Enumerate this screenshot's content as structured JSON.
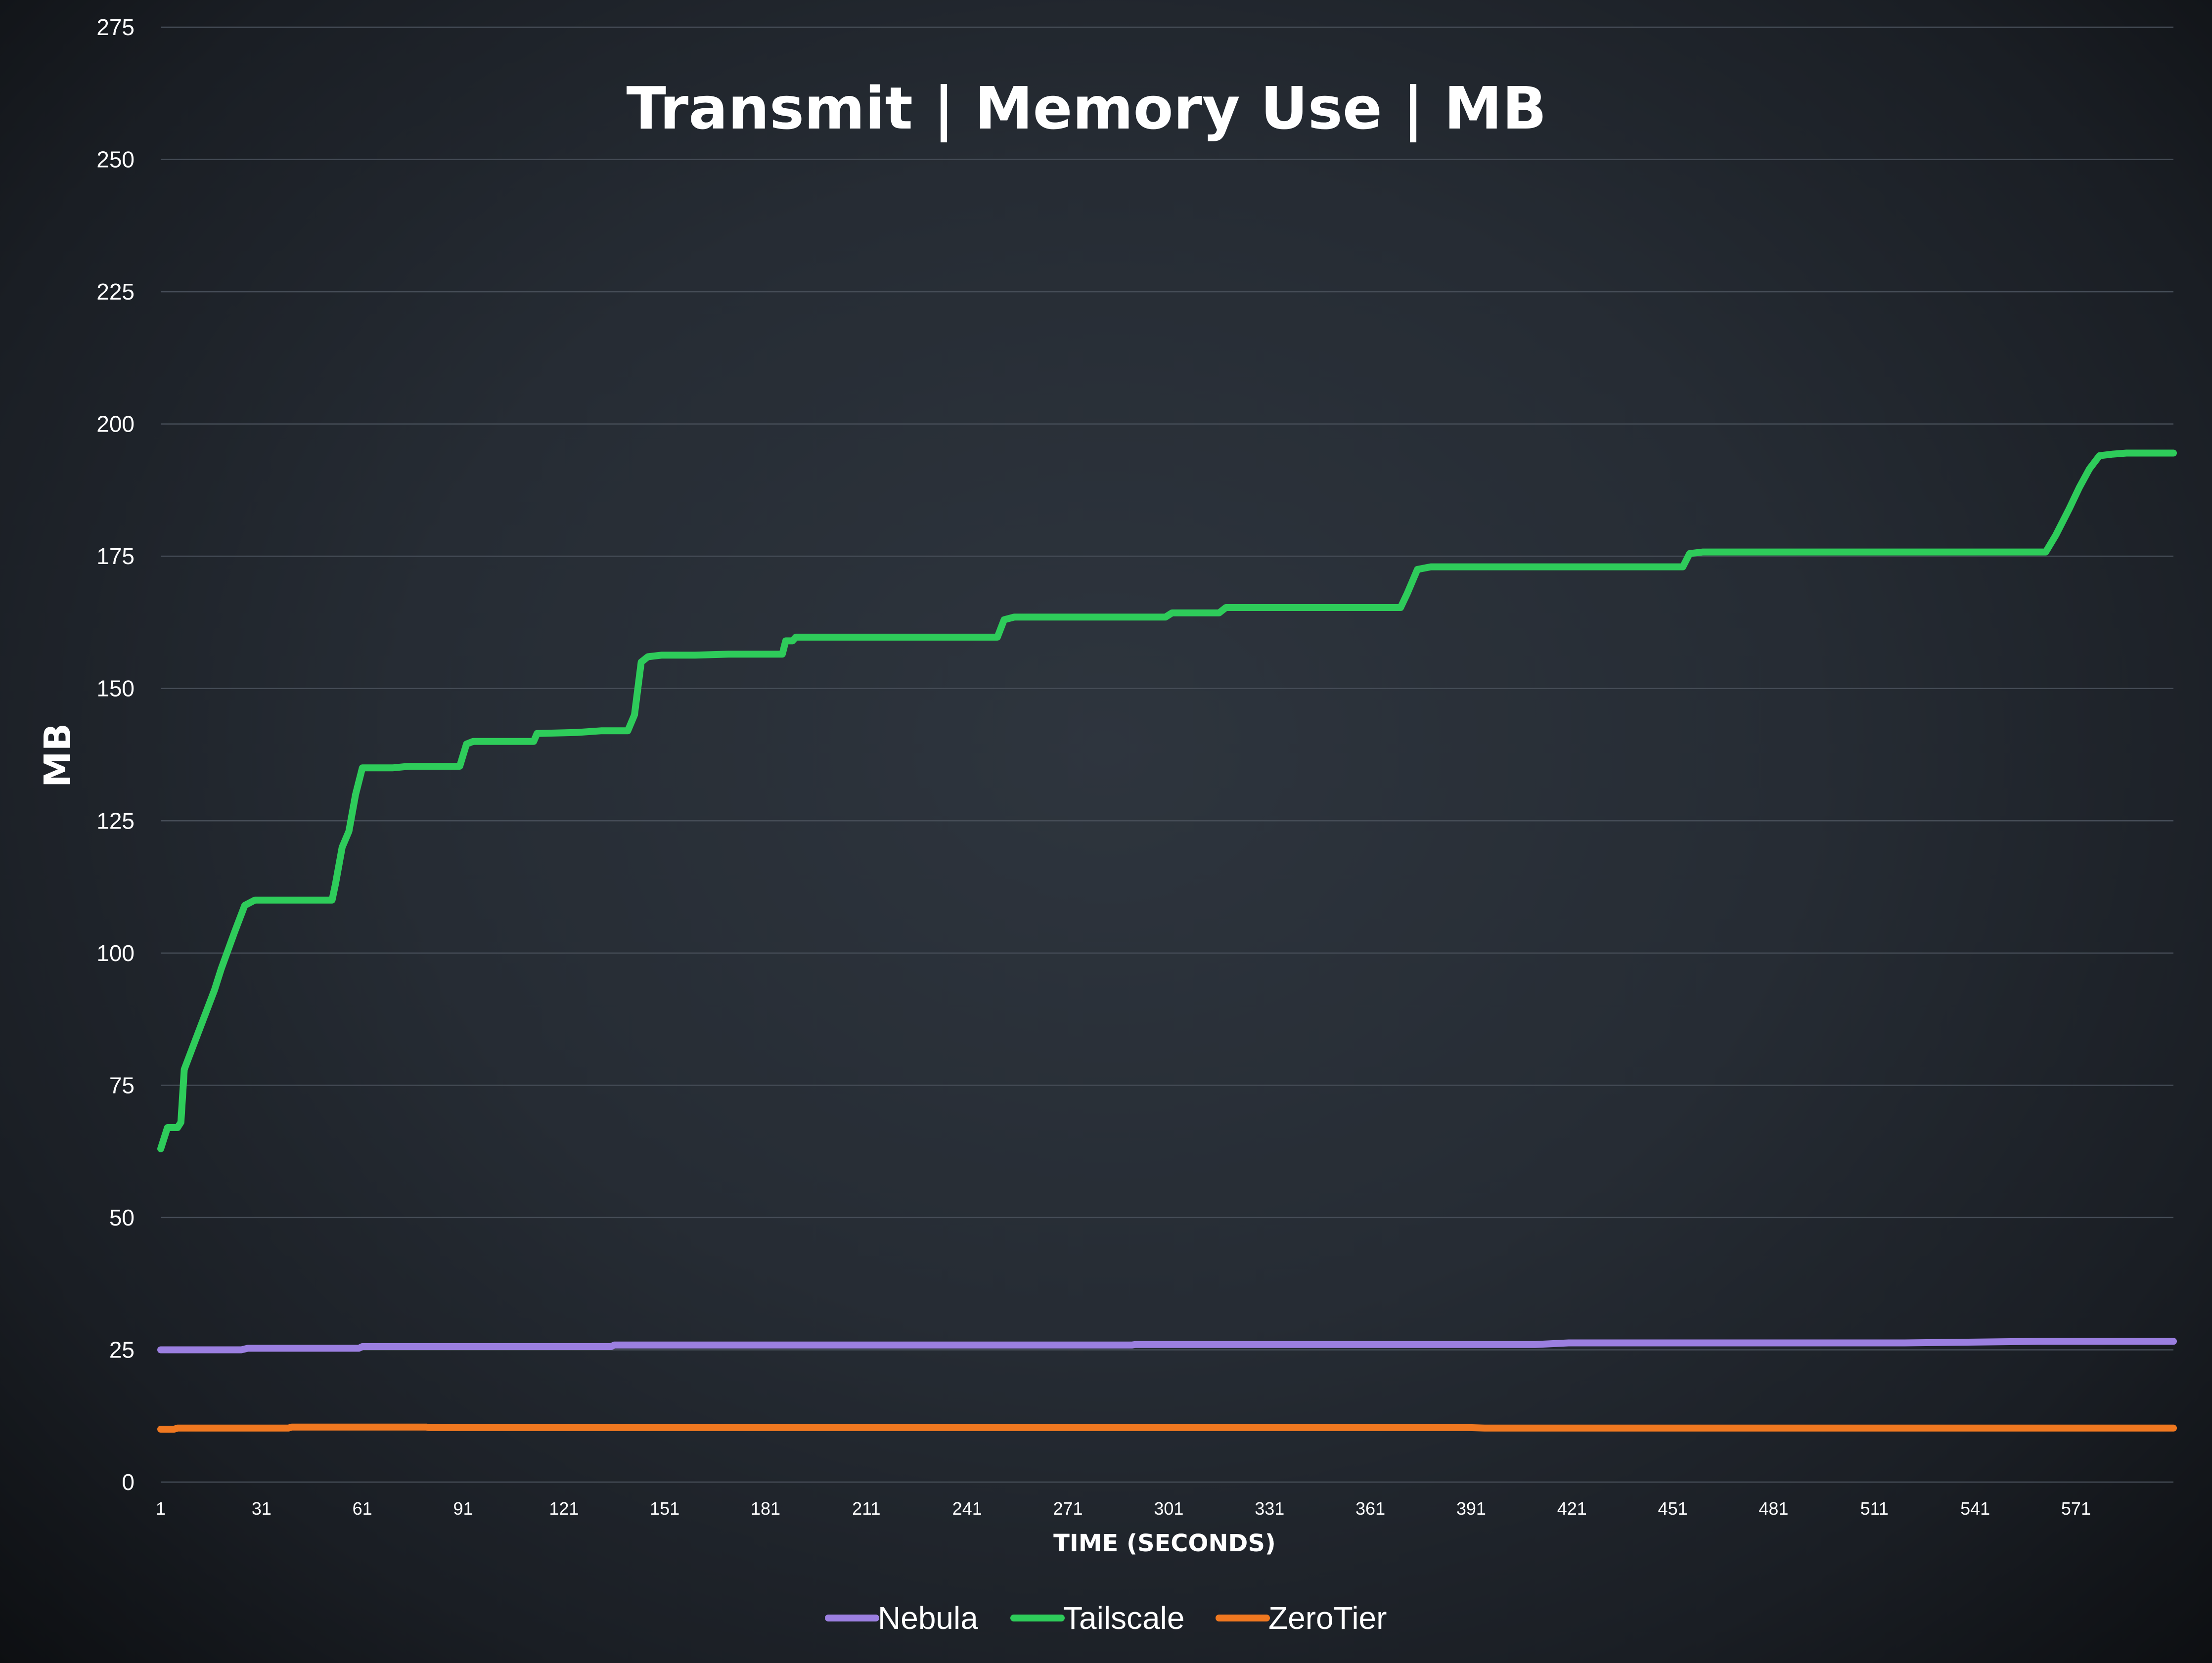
{
  "chart_data": {
    "type": "line",
    "title": "Transmit | Memory Use | MB",
    "xlabel": "TIME (SECONDS)",
    "ylabel": "MB",
    "ylim": [
      0,
      275
    ],
    "y_ticks": [
      0,
      25,
      50,
      75,
      100,
      125,
      150,
      175,
      200,
      225,
      250,
      275
    ],
    "x_range": [
      1,
      600
    ],
    "x_ticks": [
      1,
      31,
      61,
      91,
      121,
      151,
      181,
      211,
      241,
      271,
      301,
      331,
      361,
      391,
      421,
      451,
      481,
      511,
      541,
      571
    ],
    "grid": true,
    "legend_position": "bottom",
    "series": [
      {
        "name": "Nebula",
        "color": "#9b7fe0",
        "points": [
          [
            1,
            25.0
          ],
          [
            25,
            25.0
          ],
          [
            27,
            25.3
          ],
          [
            60,
            25.3
          ],
          [
            61,
            25.6
          ],
          [
            135,
            25.6
          ],
          [
            136,
            25.9
          ],
          [
            290,
            25.9
          ],
          [
            291,
            26.0
          ],
          [
            410,
            26.0
          ],
          [
            420,
            26.3
          ],
          [
            520,
            26.3
          ],
          [
            560,
            26.6
          ],
          [
            600,
            26.6
          ]
        ]
      },
      {
        "name": "Tailscale",
        "color": "#2ecc5a",
        "points": [
          [
            1,
            63
          ],
          [
            3,
            67
          ],
          [
            6,
            67
          ],
          [
            7,
            68
          ],
          [
            8,
            78
          ],
          [
            11,
            83
          ],
          [
            14,
            88
          ],
          [
            17,
            93
          ],
          [
            19,
            97
          ],
          [
            23,
            104
          ],
          [
            26,
            109
          ],
          [
            29,
            110
          ],
          [
            32,
            110
          ],
          [
            52,
            110
          ],
          [
            53,
            113
          ],
          [
            55,
            120
          ],
          [
            57,
            123
          ],
          [
            59,
            130
          ],
          [
            61,
            135
          ],
          [
            64,
            135
          ],
          [
            70,
            135
          ],
          [
            75,
            135.3
          ],
          [
            90,
            135.3
          ],
          [
            92,
            139.5
          ],
          [
            94,
            140
          ],
          [
            112,
            140
          ],
          [
            113,
            141.5
          ],
          [
            125,
            141.7
          ],
          [
            132,
            142
          ],
          [
            140,
            142
          ],
          [
            142,
            145
          ],
          [
            144,
            155
          ],
          [
            146,
            156
          ],
          [
            150,
            156.3
          ],
          [
            160,
            156.3
          ],
          [
            170,
            156.5
          ],
          [
            186,
            156.5
          ],
          [
            187,
            159
          ],
          [
            189,
            159
          ],
          [
            190,
            159.7
          ],
          [
            250,
            159.7
          ],
          [
            252,
            163
          ],
          [
            255,
            163.5
          ],
          [
            300,
            163.5
          ],
          [
            302,
            164.3
          ],
          [
            316,
            164.3
          ],
          [
            318,
            165.3
          ],
          [
            370,
            165.3
          ],
          [
            372,
            168
          ],
          [
            374,
            171
          ],
          [
            375,
            172.5
          ],
          [
            379,
            173
          ],
          [
            454,
            173
          ],
          [
            456,
            175.5
          ],
          [
            460,
            175.8
          ],
          [
            562,
            175.8
          ],
          [
            565,
            179
          ],
          [
            569,
            184
          ],
          [
            572,
            188
          ],
          [
            575,
            191.5
          ],
          [
            578,
            194
          ],
          [
            582,
            194.3
          ],
          [
            586,
            194.5
          ],
          [
            600,
            194.5
          ]
        ]
      },
      {
        "name": "ZeroTier",
        "color": "#f07820",
        "points": [
          [
            1,
            10.0
          ],
          [
            5,
            10.0
          ],
          [
            6,
            10.2
          ],
          [
            39,
            10.2
          ],
          [
            40,
            10.4
          ],
          [
            80,
            10.4
          ],
          [
            81,
            10.3
          ],
          [
            390,
            10.3
          ],
          [
            395,
            10.2
          ],
          [
            600,
            10.2
          ]
        ]
      }
    ]
  }
}
